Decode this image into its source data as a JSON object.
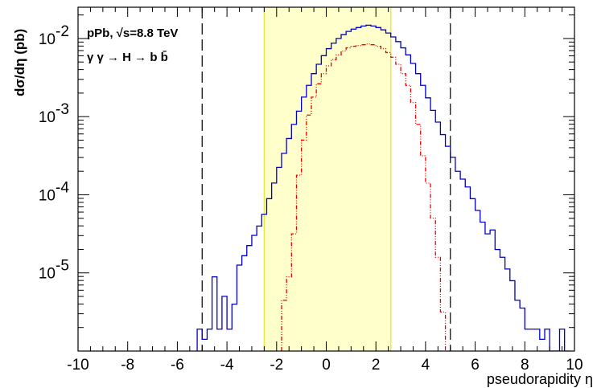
{
  "chart_data": {
    "type": "line",
    "title": "",
    "xlabel": "pseudorapidity η",
    "ylabel": "dσ/dη (pb)",
    "xlim": [
      -10,
      10
    ],
    "ylim_log10": [
      -6.0,
      -1.6
    ],
    "log_y": true,
    "bin_width": 0.2,
    "x_ticks": [
      "-10",
      "-8",
      "-6",
      "-4",
      "-2",
      "0",
      "2",
      "4",
      "6",
      "8",
      "10"
    ],
    "y_ticks": [
      {
        "mantissa": "10",
        "exponent": "-5",
        "log10": -5
      },
      {
        "mantissa": "10",
        "exponent": "-4",
        "log10": -4
      },
      {
        "mantissa": "10",
        "exponent": "-3",
        "log10": -3
      },
      {
        "mantissa": "10",
        "exponent": "-2",
        "log10": -2
      }
    ],
    "annotations": {
      "line1": "pPb, √s=8.8 TeV",
      "line2": "γ γ → H → b b̄"
    },
    "acceptance_band": {
      "x_min": -2.5,
      "x_max": 2.6,
      "color": "#ffffcc",
      "edge_color": "#e8e84a"
    },
    "vertical_dashed_lines": [
      -5,
      5
    ],
    "series": [
      {
        "color": "#0000cc",
        "style": "solid",
        "bins": [
          [
            -5.2,
            -5.72
          ],
          [
            -5.0,
            -5.85
          ],
          [
            -4.8,
            -5.72
          ],
          [
            -4.6,
            -5.05
          ],
          [
            -4.4,
            -5.72
          ],
          [
            -4.2,
            -5.3
          ],
          [
            -4.0,
            -5.72
          ],
          [
            -3.8,
            -5.4
          ],
          [
            -3.6,
            -4.9
          ],
          [
            -3.4,
            -4.78
          ],
          [
            -3.2,
            -4.65
          ],
          [
            -3.0,
            -4.52
          ],
          [
            -2.8,
            -4.4
          ],
          [
            -2.6,
            -4.25
          ],
          [
            -2.4,
            -4.05
          ],
          [
            -2.2,
            -3.85
          ],
          [
            -2.0,
            -3.65
          ],
          [
            -1.8,
            -3.47
          ],
          [
            -1.6,
            -3.28
          ],
          [
            -1.4,
            -3.1
          ],
          [
            -1.2,
            -2.93
          ],
          [
            -1.0,
            -2.75
          ],
          [
            -0.8,
            -2.6
          ],
          [
            -0.6,
            -2.45
          ],
          [
            -0.4,
            -2.33
          ],
          [
            -0.2,
            -2.22
          ],
          [
            0.0,
            -2.13
          ],
          [
            0.2,
            -2.06
          ],
          [
            0.4,
            -2.0
          ],
          [
            0.6,
            -1.95
          ],
          [
            0.8,
            -1.91
          ],
          [
            1.0,
            -1.88
          ],
          [
            1.2,
            -1.86
          ],
          [
            1.4,
            -1.84
          ],
          [
            1.6,
            -1.83
          ],
          [
            1.8,
            -1.84
          ],
          [
            2.0,
            -1.86
          ],
          [
            2.2,
            -1.89
          ],
          [
            2.4,
            -1.93
          ],
          [
            2.6,
            -1.98
          ],
          [
            2.8,
            -2.04
          ],
          [
            3.0,
            -2.12
          ],
          [
            3.2,
            -2.21
          ],
          [
            3.4,
            -2.32
          ],
          [
            3.6,
            -2.45
          ],
          [
            3.8,
            -2.6
          ],
          [
            4.0,
            -2.76
          ],
          [
            4.2,
            -2.92
          ],
          [
            4.4,
            -3.07
          ],
          [
            4.6,
            -3.23
          ],
          [
            4.8,
            -3.38
          ],
          [
            5.0,
            -3.52
          ],
          [
            5.2,
            -3.7
          ],
          [
            5.4,
            -3.8
          ],
          [
            5.6,
            -3.9
          ],
          [
            5.8,
            -4.05
          ],
          [
            6.0,
            -4.2
          ],
          [
            6.2,
            -4.35
          ],
          [
            6.4,
            -4.5
          ],
          [
            6.6,
            -4.45
          ],
          [
            6.8,
            -4.7
          ],
          [
            7.0,
            -4.8
          ],
          [
            7.2,
            -4.95
          ],
          [
            7.4,
            -5.1
          ],
          [
            7.6,
            -5.35
          ],
          [
            7.8,
            -5.45
          ],
          [
            8.0,
            -5.72
          ],
          [
            8.2,
            -5.72
          ],
          [
            8.4,
            -5.72
          ],
          [
            8.6,
            -5.85
          ],
          [
            8.8,
            -5.72
          ],
          [
            9.0,
            -6.0
          ],
          [
            9.2,
            -6.0
          ],
          [
            9.4,
            -5.72
          ],
          [
            9.6,
            -6.0
          ]
        ]
      },
      {
        "color": "#ee0000",
        "style": "dash-dot",
        "bins": [
          [
            -1.8,
            -5.35
          ],
          [
            -1.6,
            -5.05
          ],
          [
            -1.4,
            -4.5
          ],
          [
            -1.2,
            -3.75
          ],
          [
            -1.0,
            -3.3
          ],
          [
            -0.8,
            -2.98
          ],
          [
            -0.6,
            -2.75
          ],
          [
            -0.4,
            -2.58
          ],
          [
            -0.2,
            -2.45
          ],
          [
            0.0,
            -2.35
          ],
          [
            0.2,
            -2.27
          ],
          [
            0.4,
            -2.21
          ],
          [
            0.6,
            -2.16
          ],
          [
            0.8,
            -2.12
          ],
          [
            1.0,
            -2.1
          ],
          [
            1.2,
            -2.09
          ],
          [
            1.4,
            -2.08
          ],
          [
            1.6,
            -2.07
          ],
          [
            1.8,
            -2.08
          ],
          [
            2.0,
            -2.1
          ],
          [
            2.2,
            -2.13
          ],
          [
            2.4,
            -2.18
          ],
          [
            2.6,
            -2.24
          ],
          [
            2.8,
            -2.33
          ],
          [
            3.0,
            -2.45
          ],
          [
            3.2,
            -2.6
          ],
          [
            3.4,
            -2.82
          ],
          [
            3.6,
            -3.1
          ],
          [
            3.8,
            -3.5
          ],
          [
            4.0,
            -3.85
          ],
          [
            4.2,
            -4.3
          ],
          [
            4.4,
            -4.8
          ],
          [
            4.6,
            -5.5
          ],
          [
            4.8,
            -6.0
          ]
        ]
      }
    ]
  }
}
